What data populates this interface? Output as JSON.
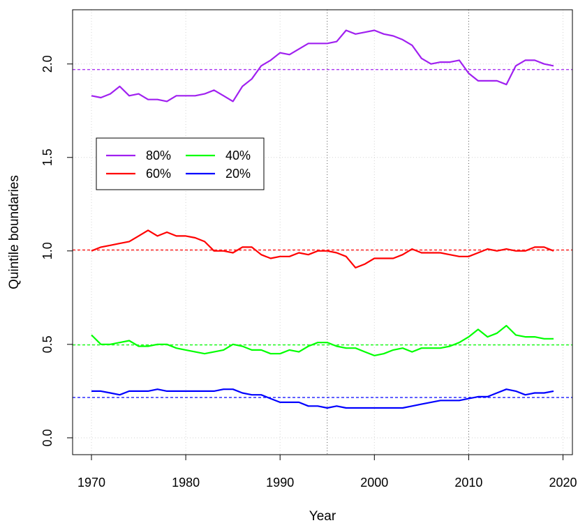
{
  "chart_data": {
    "type": "line",
    "xlabel": "Year",
    "ylabel": "Quintile boundaries",
    "xlim": [
      1968,
      2021
    ],
    "ylim": [
      -0.09,
      2.29
    ],
    "x_ticks": [
      1970,
      1980,
      1990,
      2000,
      2010,
      2020
    ],
    "y_ticks": [
      0.0,
      0.5,
      1.0,
      1.5,
      2.0
    ],
    "x_tick_labels": [
      "1970",
      "1980",
      "1990",
      "2000",
      "2010",
      "2020"
    ],
    "y_tick_labels": [
      "0.0",
      "0.5",
      "1.0",
      "1.5",
      "2.0"
    ],
    "grid": true,
    "legend_position": "upper-left",
    "vertical_reference_lines": [
      1995,
      2010
    ],
    "x": [
      1970,
      1971,
      1972,
      1973,
      1974,
      1975,
      1976,
      1977,
      1978,
      1979,
      1980,
      1981,
      1982,
      1983,
      1984,
      1985,
      1986,
      1987,
      1988,
      1989,
      1990,
      1991,
      1992,
      1993,
      1994,
      1995,
      1996,
      1997,
      1998,
      1999,
      2000,
      2001,
      2002,
      2003,
      2004,
      2005,
      2006,
      2007,
      2008,
      2009,
      2010,
      2011,
      2012,
      2013,
      2014,
      2015,
      2016,
      2017,
      2018,
      2019
    ],
    "series": [
      {
        "name": "80%",
        "color": "#a020f0",
        "reference": 1.97,
        "values": [
          1.83,
          1.82,
          1.84,
          1.88,
          1.83,
          1.84,
          1.81,
          1.81,
          1.8,
          1.83,
          1.83,
          1.83,
          1.84,
          1.86,
          1.83,
          1.8,
          1.88,
          1.92,
          1.99,
          2.02,
          2.06,
          2.05,
          2.08,
          2.11,
          2.11,
          2.11,
          2.12,
          2.18,
          2.16,
          2.17,
          2.18,
          2.16,
          2.15,
          2.13,
          2.1,
          2.03,
          2.0,
          2.01,
          2.01,
          2.02,
          1.95,
          1.91,
          1.91,
          1.91,
          1.89,
          1.99,
          2.02,
          2.02,
          2.0,
          1.99
        ]
      },
      {
        "name": "60%",
        "color": "#ff0000",
        "reference": 1.005,
        "values": [
          1.0,
          1.02,
          1.03,
          1.04,
          1.05,
          1.08,
          1.11,
          1.08,
          1.1,
          1.08,
          1.08,
          1.07,
          1.05,
          1.0,
          1.0,
          0.99,
          1.02,
          1.02,
          0.98,
          0.96,
          0.97,
          0.97,
          0.99,
          0.98,
          1.0,
          1.0,
          0.99,
          0.97,
          0.91,
          0.93,
          0.96,
          0.96,
          0.96,
          0.98,
          1.01,
          0.99,
          0.99,
          0.99,
          0.98,
          0.97,
          0.97,
          0.99,
          1.01,
          1.0,
          1.01,
          1.0,
          1.0,
          1.02,
          1.02,
          1.0
        ]
      },
      {
        "name": "40%",
        "color": "#00ff00",
        "reference": 0.497,
        "values": [
          0.55,
          0.5,
          0.5,
          0.51,
          0.52,
          0.49,
          0.49,
          0.5,
          0.5,
          0.48,
          0.47,
          0.46,
          0.45,
          0.46,
          0.47,
          0.5,
          0.49,
          0.47,
          0.47,
          0.45,
          0.45,
          0.47,
          0.46,
          0.49,
          0.51,
          0.51,
          0.49,
          0.48,
          0.48,
          0.46,
          0.44,
          0.45,
          0.47,
          0.48,
          0.46,
          0.48,
          0.48,
          0.48,
          0.49,
          0.51,
          0.54,
          0.58,
          0.54,
          0.56,
          0.6,
          0.55,
          0.54,
          0.54,
          0.53,
          0.53
        ]
      },
      {
        "name": "20%",
        "color": "#0000ff",
        "reference": 0.216,
        "values": [
          0.25,
          0.25,
          0.24,
          0.23,
          0.25,
          0.25,
          0.25,
          0.26,
          0.25,
          0.25,
          0.25,
          0.25,
          0.25,
          0.25,
          0.26,
          0.26,
          0.24,
          0.23,
          0.23,
          0.21,
          0.19,
          0.19,
          0.19,
          0.17,
          0.17,
          0.16,
          0.17,
          0.16,
          0.16,
          0.16,
          0.16,
          0.16,
          0.16,
          0.16,
          0.17,
          0.18,
          0.19,
          0.2,
          0.2,
          0.2,
          0.21,
          0.22,
          0.22,
          0.24,
          0.26,
          0.25,
          0.23,
          0.24,
          0.24,
          0.25
        ]
      }
    ]
  }
}
